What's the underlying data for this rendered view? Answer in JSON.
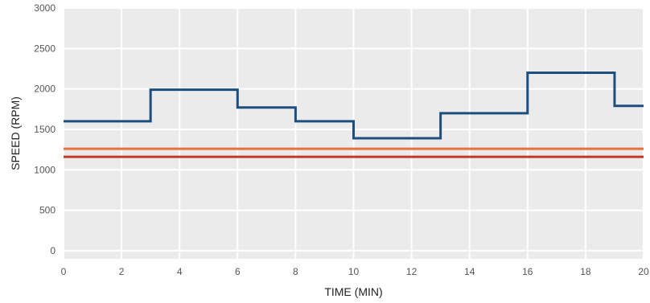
{
  "chart_data": {
    "type": "line",
    "step": true,
    "title": "",
    "xlabel": "TIME (MIN)",
    "ylabel": "SPEED (RPM)",
    "xlim": [
      0,
      20
    ],
    "ylim": [
      0,
      3000
    ],
    "xticks": [
      0,
      2,
      4,
      6,
      8,
      10,
      12,
      14,
      16,
      18,
      20
    ],
    "yticks": [
      0,
      500,
      1000,
      1500,
      2000,
      2500,
      3000
    ],
    "grid": true,
    "background": "#ebebeb",
    "grid_color": "#ffffff",
    "series": [
      {
        "color": "#1c4e80",
        "step_points": [
          [
            0,
            1600
          ],
          [
            3,
            1600
          ],
          [
            3,
            1990
          ],
          [
            6,
            1990
          ],
          [
            6,
            1770
          ],
          [
            8,
            1770
          ],
          [
            8,
            1600
          ],
          [
            10,
            1600
          ],
          [
            10,
            1390
          ],
          [
            13,
            1390
          ],
          [
            13,
            1700
          ],
          [
            16,
            1700
          ],
          [
            16,
            2200
          ],
          [
            19,
            2200
          ],
          [
            19,
            1790
          ],
          [
            20,
            1790
          ]
        ]
      },
      {
        "color": "#e8713c",
        "step_points": [
          [
            0,
            1260
          ],
          [
            20,
            1260
          ]
        ]
      },
      {
        "color": "#c0392b",
        "step_points": [
          [
            0,
            1160
          ],
          [
            20,
            1160
          ]
        ]
      }
    ]
  }
}
